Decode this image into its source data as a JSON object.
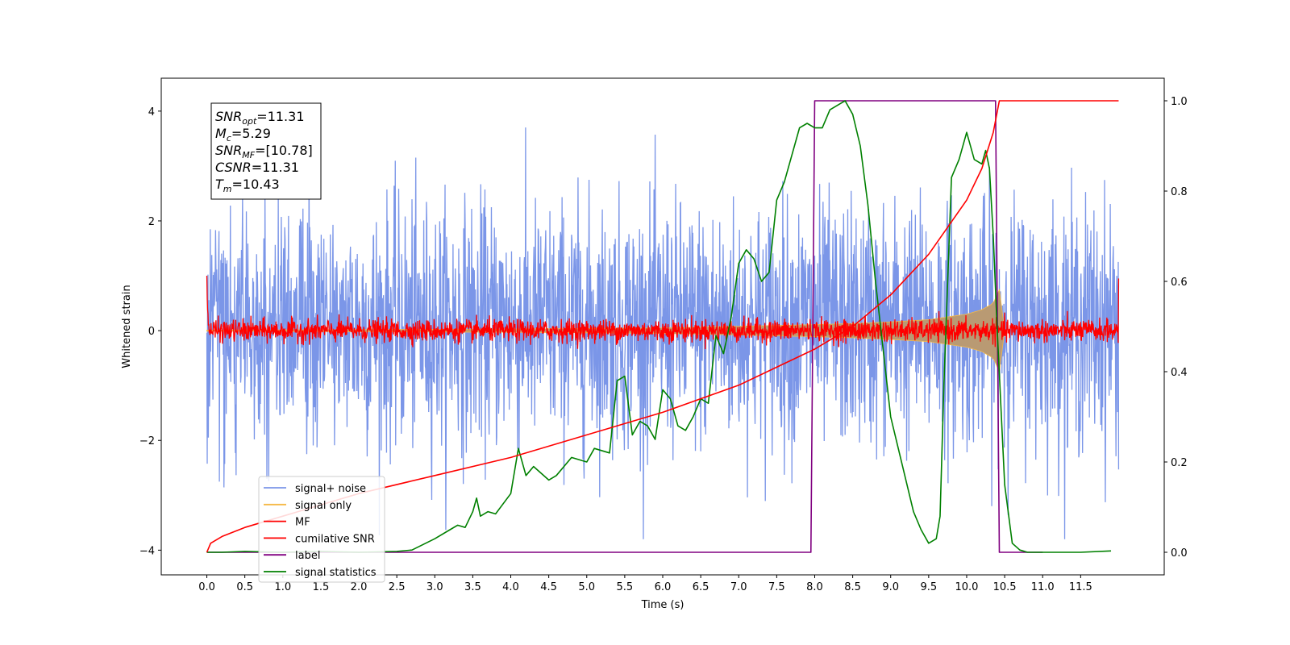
{
  "colors": {
    "signal_noise": "#7b96e8",
    "signal_only": "#f5b946",
    "signal_only_fill": "#b99a73",
    "mf": "#ff0000",
    "cumulative_snr": "#ff0000",
    "label": "#800080",
    "signal_statistics": "#008000"
  },
  "annotation": [
    {
      "base": "SNR",
      "sub": "opt",
      "value": "=11.31"
    },
    {
      "base": "M",
      "sub": "c",
      "value": "=5.29"
    },
    {
      "base": "SNR",
      "sub": "MF",
      "value": "=[10.78]"
    },
    {
      "base": "CSNR",
      "sub": "",
      "value": "=11.31"
    },
    {
      "base": "T",
      "sub": "m",
      "value": "=10.43"
    }
  ],
  "chart_data": {
    "type": "line",
    "xlabel": "Time (s)",
    "ylabel": "Whitened strain",
    "xlim": [
      -0.6,
      12.6
    ],
    "ylim": [
      -4.45,
      4.6
    ],
    "ylim_right": [
      -0.05,
      1.05
    ],
    "x_ticks": [
      0.0,
      0.5,
      1.0,
      1.5,
      2.0,
      2.5,
      3.0,
      3.5,
      4.0,
      4.5,
      5.0,
      5.5,
      6.0,
      6.5,
      7.0,
      7.5,
      8.0,
      8.5,
      9.0,
      9.5,
      10.0,
      10.5,
      11.0,
      11.5
    ],
    "x_tick_labels": [
      "0.0",
      "0.5",
      "1.0",
      "1.5",
      "2.0",
      "2.5",
      "3.0",
      "3.5",
      "4.0",
      "4.5",
      "5.0",
      "5.5",
      "6.0",
      "6.5",
      "7.0",
      "7.5",
      "8.0",
      "8.5",
      "9.0",
      "9.5",
      "10.0",
      "10.5",
      "11.0",
      "11.5"
    ],
    "y_ticks": [
      -4,
      -2,
      0,
      2,
      4
    ],
    "y_tick_labels": [
      "−4",
      "−2",
      "0",
      "2",
      "4"
    ],
    "y_right_ticks": [
      0.0,
      0.2,
      0.4,
      0.6,
      0.8,
      1.0
    ],
    "y_right_tick_labels": [
      "0.0",
      "0.2",
      "0.4",
      "0.6",
      "0.8",
      "1.0"
    ],
    "legend": {
      "placement": "lower-left",
      "entries": [
        {
          "label": "signal+ noise",
          "color": "#7b96e8"
        },
        {
          "label": "signal only",
          "color": "#f5b946"
        },
        {
          "label": "MF",
          "color": "#ff0000"
        },
        {
          "label": "cumilative SNR",
          "color": "#ff0000"
        },
        {
          "label": "label",
          "color": "#800080"
        },
        {
          "label": "signal statistics",
          "color": "#008000"
        }
      ]
    },
    "series": [
      {
        "name": "signal+ noise",
        "axis": "left",
        "kind": "noise",
        "x_range": [
          0.0,
          12.0
        ],
        "mean": 0.1,
        "spread": 1.1,
        "peak_max": 4.1,
        "peak_min": -3.8
      },
      {
        "name": "signal only",
        "axis": "left",
        "kind": "chirp_envelope",
        "x": [
          0.0,
          2.0,
          4.0,
          6.0,
          7.0,
          8.0,
          8.5,
          9.0,
          9.5,
          10.0,
          10.2,
          10.35,
          10.43,
          10.5
        ],
        "amplitude": [
          0.01,
          0.02,
          0.03,
          0.05,
          0.08,
          0.11,
          0.13,
          0.16,
          0.2,
          0.3,
          0.38,
          0.5,
          0.75,
          0.0
        ]
      },
      {
        "name": "MF",
        "axis": "left",
        "kind": "noise_small",
        "x_range": [
          0.0,
          12.0
        ],
        "spread": 0.1,
        "endpoints": [
          1.0,
          0.95
        ]
      },
      {
        "name": "cumilative SNR",
        "axis": "right",
        "x": [
          0.0,
          0.05,
          0.2,
          0.5,
          1.0,
          2.0,
          3.0,
          4.0,
          5.0,
          6.0,
          7.0,
          7.5,
          8.0,
          8.5,
          9.0,
          9.5,
          10.0,
          10.2,
          10.35,
          10.43,
          11.0,
          12.0
        ],
        "y": [
          0.0,
          0.02,
          0.035,
          0.055,
          0.08,
          0.13,
          0.17,
          0.21,
          0.26,
          0.31,
          0.37,
          0.41,
          0.45,
          0.5,
          0.57,
          0.66,
          0.78,
          0.85,
          0.93,
          1.0,
          1.0,
          1.0
        ]
      },
      {
        "name": "label",
        "axis": "right",
        "x": [
          0.0,
          7.95,
          8.0,
          10.38,
          10.43,
          11.0
        ],
        "y": [
          0.0,
          0.0,
          1.0,
          1.0,
          0.0,
          0.0
        ]
      },
      {
        "name": "signal statistics",
        "axis": "right",
        "x": [
          0.0,
          0.2,
          0.5,
          1.0,
          1.5,
          2.0,
          2.5,
          2.7,
          3.0,
          3.2,
          3.3,
          3.4,
          3.5,
          3.55,
          3.6,
          3.7,
          3.8,
          4.0,
          4.1,
          4.2,
          4.3,
          4.5,
          4.6,
          4.8,
          5.0,
          5.1,
          5.3,
          5.4,
          5.5,
          5.6,
          5.7,
          5.8,
          5.9,
          6.0,
          6.1,
          6.2,
          6.3,
          6.4,
          6.5,
          6.6,
          6.7,
          6.8,
          6.9,
          7.0,
          7.1,
          7.2,
          7.3,
          7.4,
          7.5,
          7.6,
          7.8,
          7.9,
          8.0,
          8.1,
          8.2,
          8.3,
          8.4,
          8.5,
          8.6,
          8.7,
          8.8,
          8.9,
          9.0,
          9.1,
          9.2,
          9.3,
          9.4,
          9.5,
          9.6,
          9.65,
          9.7,
          9.8,
          9.9,
          10.0,
          10.1,
          10.2,
          10.25,
          10.3,
          10.35,
          10.4,
          10.5,
          10.6,
          10.7,
          10.8,
          11.0,
          11.5,
          11.9
        ],
        "y": [
          0.0,
          0.0,
          0.002,
          0.0,
          0.002,
          0.0,
          0.002,
          0.005,
          0.03,
          0.05,
          0.06,
          0.055,
          0.09,
          0.12,
          0.08,
          0.09,
          0.085,
          0.13,
          0.23,
          0.17,
          0.19,
          0.16,
          0.17,
          0.21,
          0.2,
          0.23,
          0.22,
          0.38,
          0.39,
          0.26,
          0.29,
          0.28,
          0.25,
          0.36,
          0.34,
          0.28,
          0.27,
          0.3,
          0.34,
          0.33,
          0.48,
          0.44,
          0.52,
          0.64,
          0.67,
          0.65,
          0.6,
          0.62,
          0.78,
          0.82,
          0.94,
          0.95,
          0.94,
          0.94,
          0.98,
          0.99,
          1.0,
          0.97,
          0.9,
          0.77,
          0.6,
          0.45,
          0.3,
          0.23,
          0.16,
          0.09,
          0.05,
          0.02,
          0.03,
          0.08,
          0.37,
          0.83,
          0.87,
          0.93,
          0.87,
          0.86,
          0.89,
          0.85,
          0.7,
          0.5,
          0.15,
          0.02,
          0.005,
          0.0,
          0.0,
          0.0,
          0.003
        ]
      }
    ]
  }
}
